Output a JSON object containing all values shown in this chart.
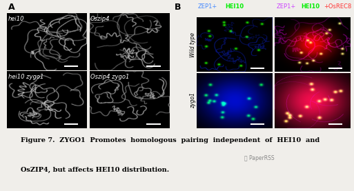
{
  "bg_color": "#f0eeea",
  "fig_width": 5.13,
  "fig_height": 2.77,
  "label_A": "A",
  "label_B": "B",
  "panel_labels_A": [
    "hei10",
    "Oszip4",
    "hei10 zygo1",
    "Oszip4 zygo1"
  ],
  "col_headers_B_left_text": [
    "ZEP1+",
    "HEI10"
  ],
  "col_headers_B_left_colors": [
    "#4488ff",
    "#00ee00"
  ],
  "col_headers_B_right_text": [
    "ZEP1+",
    "HEI10",
    "+OsREC8"
  ],
  "col_headers_B_right_colors": [
    "#cc44ff",
    "#00ee00",
    "#ff3333"
  ],
  "row_label_top": "Wild type",
  "row_label_bottom": "zygo1",
  "caption_line1": "Figure 7.  ZYGO1  Promotes  homologous  pairing  independent  of  HEI10  and",
  "caption_line2": "OsZIP4, but affects HEI10 distribution.",
  "watermark": "PaperRSS",
  "caption_fontsize": 7.0,
  "panel_label_fontsize": 6.0,
  "ab_label_fontsize": 9
}
